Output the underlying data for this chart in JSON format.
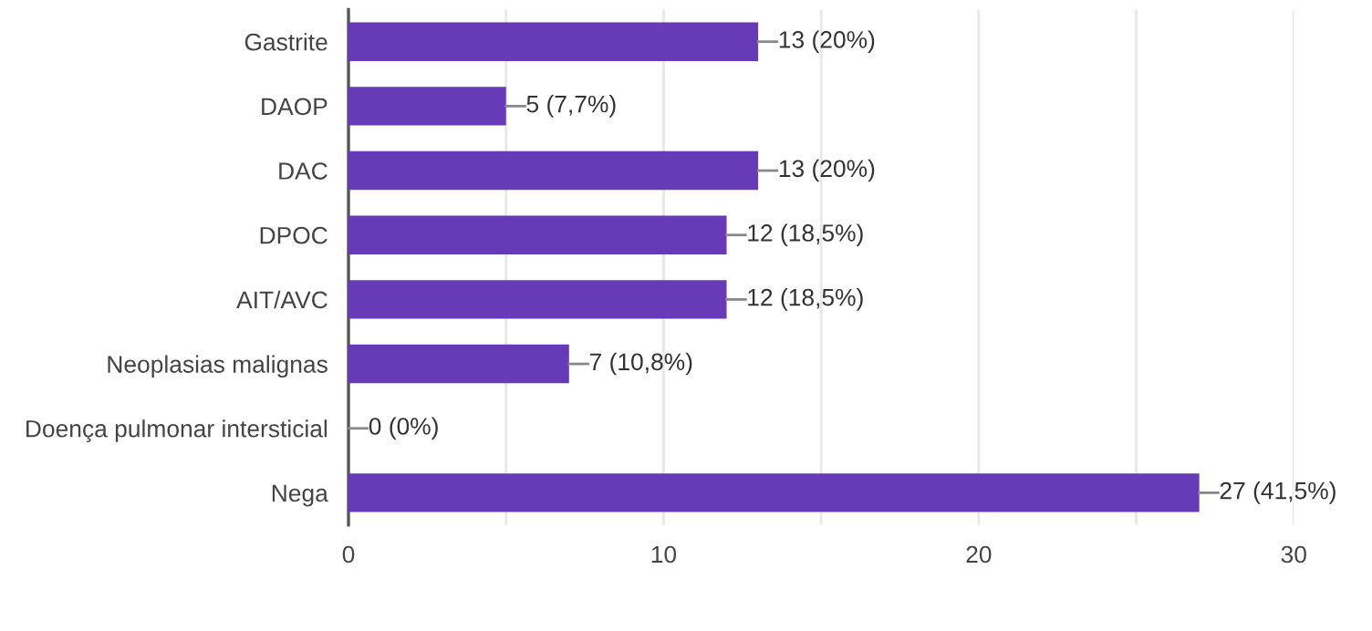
{
  "chart_data": {
    "type": "bar",
    "orientation": "horizontal",
    "categories": [
      "Gastrite",
      "DAOP",
      "DAC",
      "DPOC",
      "AIT/AVC",
      "Neoplasias malignas",
      "Doença pulmonar intersticial",
      "Nega"
    ],
    "values": [
      13,
      5,
      13,
      12,
      12,
      7,
      0,
      27
    ],
    "value_labels": [
      "13 (20%)",
      "5 (7,7%)",
      "13 (20%)",
      "12 (18,5%)",
      "12 (18,5%)",
      "7 (10,8%)",
      "0 (0%)",
      "27 (41,5%)"
    ],
    "color": "#673ab7",
    "xlim": [
      0,
      30
    ],
    "xticks": [
      0,
      {
        "value": 5,
        "label": null
      },
      10,
      {
        "value": 15,
        "label": null
      },
      20,
      {
        "value": 25,
        "label": null
      },
      30
    ],
    "grid": "x"
  }
}
